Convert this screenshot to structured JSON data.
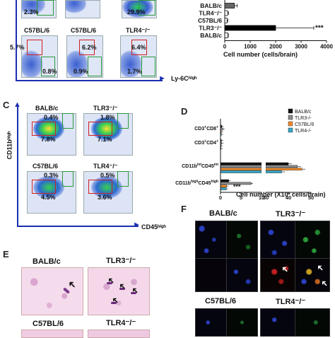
{
  "panelA": {
    "top_row_pcts": [
      "2.3%",
      "29.9%"
    ],
    "row2_titles": [
      "C57BL/6",
      "C57BL/6",
      "TLR4⁻/⁻"
    ],
    "row2_pcts_top": [
      "5.7%",
      "6.2%",
      "6.4%"
    ],
    "row2_pcts_bottom": [
      "0.8%",
      "0.9%",
      "1.7%"
    ],
    "x_axis_label": "Ly-6Cʰⁱᵍʰ"
  },
  "panelB": {
    "xlabel": "Cell number (cells/brain)",
    "significance": "***",
    "chart_data": {
      "type": "bar",
      "orientation": "horizontal",
      "categories": [
        "BALB/c",
        "TLR4-/-",
        "C57BL/6",
        "TLR3-/-",
        "BALB/c"
      ],
      "category_labels": [
        "BALB/c",
        "TLR4⁻/⁻",
        "C57BL/6",
        "TLR3⁻/⁻",
        "BALB/c"
      ],
      "values": [
        380,
        110,
        90,
        2000,
        120
      ],
      "errors": [
        110,
        40,
        30,
        1500,
        20
      ],
      "xlim": [
        0,
        4000
      ],
      "xticks": [
        "0",
        "1000",
        "2000",
        "3000",
        "4000"
      ]
    }
  },
  "panelC": {
    "label": "C",
    "y_axis_label": "CD11bʰⁱᵍʰ",
    "x_axis_label": "CD45ʰⁱᵍʰ",
    "plots": [
      {
        "title": "BALB/c",
        "top": "0.4%",
        "bottom": "7.8%"
      },
      {
        "title": "TLR3⁻/⁻",
        "top": "1.8%",
        "bottom": "7.1%"
      },
      {
        "title": "C57BL/6",
        "top": "0.3%",
        "bottom": "4.5%"
      },
      {
        "title": "TLR4⁻/⁻",
        "top": "0.5%",
        "bottom": "3.6%"
      }
    ]
  },
  "panelD": {
    "label": "D",
    "xlabel": "Cell number (X10³ cells/brain)",
    "significance": "***",
    "legend": [
      "BALB/c",
      "TLR3-/-",
      "C57BL/6",
      "TLR4-/-"
    ],
    "colors": {
      "BALB/c": "#111111",
      "TLR3-/-": "#8a8a8a",
      "C57BL/6": "#f08a2a",
      "TLR4-/-": "#3aa6c6"
    },
    "chart_data": {
      "type": "bar",
      "orientation": "horizontal",
      "categories": [
        "CD3+CD8+",
        "CD3+CD4+",
        "CD11b int CD45 int",
        "CD11b high CD45 high"
      ],
      "category_labels": [
        [
          "CD3",
          "+",
          "CD8",
          "+"
        ],
        [
          "CD3",
          "+",
          "CD4",
          "+"
        ],
        [
          "CD11b",
          "int",
          "CD45",
          "int"
        ],
        [
          "CD11b",
          "high",
          "CD45",
          "high"
        ]
      ],
      "axis_break": [
        10,
        30
      ],
      "xticks": [
        "0",
        "5",
        "10",
        "30",
        "40",
        "50"
      ],
      "xtick_values": [
        0,
        5,
        10,
        30,
        40,
        50
      ],
      "series": [
        {
          "name": "BALB/c",
          "values": [
            0.3,
            0.2,
            40,
            2.0
          ]
        },
        {
          "name": "TLR3-/-",
          "values": [
            0.6,
            0.3,
            44,
            7.5
          ]
        },
        {
          "name": "C57BL/6",
          "values": [
            0.2,
            0.1,
            46,
            1.5
          ]
        },
        {
          "name": "TLR4-/-",
          "values": [
            0.2,
            0.1,
            37,
            1.4
          ]
        }
      ]
    }
  },
  "panelE": {
    "label": "E",
    "titles": [
      "BALB/c",
      "TLR3⁻/⁻",
      "C57BL/6",
      "TLR4⁻/⁻"
    ]
  },
  "panelF": {
    "label": "F",
    "titles": [
      "BALB/c",
      "TLR3⁻/⁻",
      "C57BL/6",
      "TLR4⁻/⁻"
    ]
  }
}
